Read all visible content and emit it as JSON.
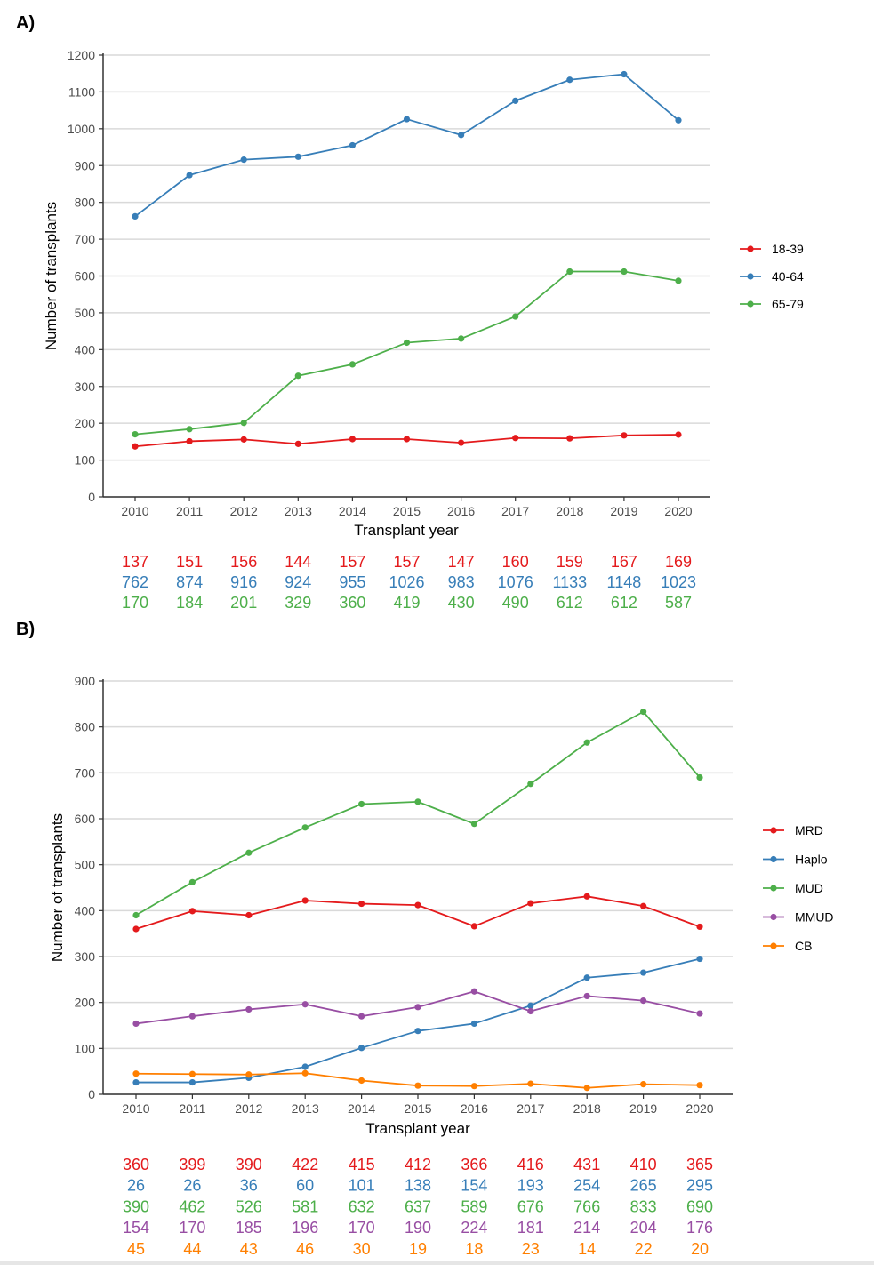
{
  "panels": [
    {
      "label": "A)",
      "chart_data": {
        "type": "line",
        "title": "",
        "xlabel": "Transplant year",
        "ylabel": "Number of transplants",
        "x": [
          2010,
          2011,
          2012,
          2013,
          2014,
          2015,
          2016,
          2017,
          2018,
          2019,
          2020
        ],
        "ylim": [
          0,
          1200
        ],
        "yticks": [
          0,
          100,
          200,
          300,
          400,
          500,
          600,
          700,
          800,
          900,
          1000,
          1100,
          1200
        ],
        "grid": "horizontal",
        "legend_position": "right",
        "series": [
          {
            "name": "18-39",
            "color": "#e41a1c",
            "values": [
              137,
              151,
              156,
              144,
              157,
              157,
              147,
              160,
              159,
              167,
              169
            ]
          },
          {
            "name": "40-64",
            "color": "#377eb8",
            "values": [
              762,
              874,
              916,
              924,
              955,
              1026,
              983,
              1076,
              1133,
              1148,
              1023
            ]
          },
          {
            "name": "65-79",
            "color": "#4daf4a",
            "values": [
              170,
              184,
              201,
              329,
              360,
              419,
              430,
              490,
              612,
              612,
              587
            ]
          }
        ]
      }
    },
    {
      "label": "B)",
      "chart_data": {
        "type": "line",
        "title": "",
        "xlabel": "Transplant year",
        "ylabel": "Number of transplants",
        "x": [
          2010,
          2011,
          2012,
          2013,
          2014,
          2015,
          2016,
          2017,
          2018,
          2019,
          2020
        ],
        "ylim": [
          0,
          900
        ],
        "yticks": [
          0,
          100,
          200,
          300,
          400,
          500,
          600,
          700,
          800,
          900
        ],
        "grid": "horizontal",
        "legend_position": "right",
        "series": [
          {
            "name": "MRD",
            "color": "#e41a1c",
            "values": [
              360,
              399,
              390,
              422,
              415,
              412,
              366,
              416,
              431,
              410,
              365
            ]
          },
          {
            "name": "Haplo",
            "color": "#377eb8",
            "values": [
              26,
              26,
              36,
              60,
              101,
              138,
              154,
              193,
              254,
              265,
              295
            ]
          },
          {
            "name": "MUD",
            "color": "#4daf4a",
            "values": [
              390,
              462,
              526,
              581,
              632,
              637,
              589,
              676,
              766,
              833,
              690
            ]
          },
          {
            "name": "MMUD",
            "color": "#984ea3",
            "values": [
              154,
              170,
              185,
              196,
              170,
              190,
              224,
              181,
              214,
              204,
              176
            ]
          },
          {
            "name": "CB",
            "color": "#ff7f00",
            "values": [
              45,
              44,
              43,
              46,
              30,
              19,
              18,
              23,
              14,
              22,
              20
            ]
          }
        ]
      }
    }
  ]
}
